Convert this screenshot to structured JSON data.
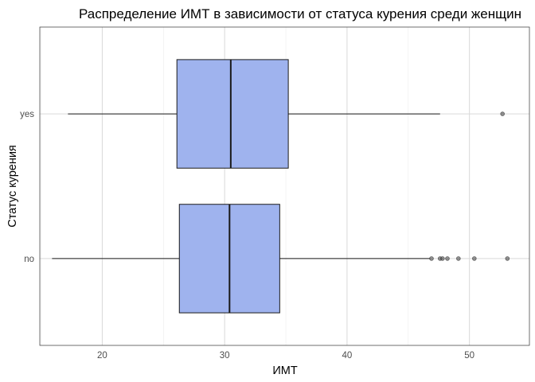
{
  "chart_data": {
    "type": "boxplot",
    "orientation": "horizontal",
    "title": "Распределение ИМТ в зависимости от статуса курения среди женщин",
    "xlabel": "ИМТ",
    "ylabel": "Статус курения",
    "xlim": [
      14.9,
      54.9
    ],
    "x_ticks": [
      20,
      30,
      40,
      50
    ],
    "x_tick_labels": [
      "20",
      "30",
      "40",
      "50"
    ],
    "categories": [
      "no",
      "yes"
    ],
    "grid": true,
    "legend": "none",
    "box_color": "#9fb3ee",
    "box_border_color": "#1a1a1a",
    "outlier_color": "#4d4d4d",
    "boxes": [
      {
        "category": "no",
        "whisker_low": 15.9,
        "q1": 26.3,
        "median": 30.4,
        "q3": 34.5,
        "whisker_high": 46.8,
        "outliers": [
          46.9,
          47.6,
          47.8,
          48.2,
          49.1,
          50.4,
          53.1
        ]
      },
      {
        "category": "yes",
        "whisker_low": 17.2,
        "q1": 26.1,
        "median": 30.5,
        "q3": 35.2,
        "whisker_high": 47.6,
        "outliers": [
          52.7
        ]
      }
    ]
  }
}
